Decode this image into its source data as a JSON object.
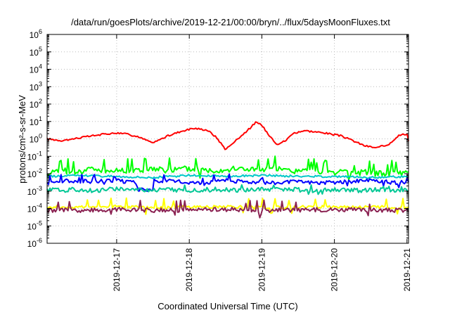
{
  "chart_data": {
    "type": "line",
    "title": "/data/run/goesPlots/archive/2019-12-21/00:00/bryn/../flux/5daysMoonFluxes.txt",
    "xlabel": "Coordinated Universal Time (UTC)",
    "ylabel": "protons/cm²-s-sr-MeV",
    "y_scale": "log",
    "ylim_exponents": [
      -6,
      6
    ],
    "xlim": [
      "2019-12-16T01:00",
      "2019-12-21T00:30"
    ],
    "grid": true,
    "legend": "none",
    "x_ticks": [
      {
        "at": "2019-12-17T00:00",
        "label": "2019-12-17"
      },
      {
        "at": "2019-12-18T00:00",
        "label": "2019-12-18"
      },
      {
        "at": "2019-12-19T00:00",
        "label": "2019-12-19"
      },
      {
        "at": "2019-12-20T00:00",
        "label": "2019-12-20"
      },
      {
        "at": "2019-12-21T00:00",
        "label": "2019-12-21"
      }
    ],
    "y_ticks": [
      {
        "exp": -6,
        "label": "10",
        "sup": "-6"
      },
      {
        "exp": -5,
        "label": "10",
        "sup": "-5"
      },
      {
        "exp": -4,
        "label": "10",
        "sup": "-4"
      },
      {
        "exp": -3,
        "label": "10",
        "sup": "-3"
      },
      {
        "exp": -2,
        "label": "10",
        "sup": "-2"
      },
      {
        "exp": -1,
        "label": "10",
        "sup": "-1"
      },
      {
        "exp": 0,
        "label": "10",
        "sup": "0"
      },
      {
        "exp": 1,
        "label": "10",
        "sup": "1"
      },
      {
        "exp": 2,
        "label": "10",
        "sup": "2"
      },
      {
        "exp": 3,
        "label": "10",
        "sup": "3"
      },
      {
        "exp": 4,
        "label": "10",
        "sup": "4"
      },
      {
        "exp": 5,
        "label": "10",
        "sup": "5"
      },
      {
        "exp": 6,
        "label": "10",
        "sup": "6"
      }
    ],
    "series": [
      {
        "color": "#ff0000",
        "points": [
          [
            "2019-12-16T01:00",
            1.0
          ],
          [
            "2019-12-16T06:00",
            0.8
          ],
          [
            "2019-12-16T11:00",
            1.1
          ],
          [
            "2019-12-16T16:00",
            1.5
          ],
          [
            "2019-12-16T21:00",
            2.0
          ],
          [
            "2019-12-17T02:00",
            2.2
          ],
          [
            "2019-12-17T07:00",
            1.3
          ],
          [
            "2019-12-17T12:00",
            0.6
          ],
          [
            "2019-12-17T17:00",
            1.5
          ],
          [
            "2019-12-17T22:00",
            3.0
          ],
          [
            "2019-12-18T02:00",
            4.0
          ],
          [
            "2019-12-18T06:00",
            3.2
          ],
          [
            "2019-12-18T09:00",
            1.2
          ],
          [
            "2019-12-18T12:00",
            0.25
          ],
          [
            "2019-12-18T16:00",
            1.0
          ],
          [
            "2019-12-18T20:00",
            4.0
          ],
          [
            "2019-12-18T22:00",
            9.0
          ],
          [
            "2019-12-19T00:00",
            6.0
          ],
          [
            "2019-12-19T02:00",
            2.0
          ],
          [
            "2019-12-19T05:00",
            0.5
          ],
          [
            "2019-12-19T08:00",
            0.8
          ],
          [
            "2019-12-19T10:00",
            2.0
          ],
          [
            "2019-12-19T14:00",
            3.0
          ],
          [
            "2019-12-19T18:00",
            2.5
          ],
          [
            "2019-12-19T22:00",
            2.0
          ],
          [
            "2019-12-20T02:00",
            1.5
          ],
          [
            "2019-12-20T06:00",
            0.8
          ],
          [
            "2019-12-20T10:00",
            0.4
          ],
          [
            "2019-12-20T14:00",
            0.3
          ],
          [
            "2019-12-20T18:00",
            0.5
          ],
          [
            "2019-12-20T21:00",
            1.5
          ],
          [
            "2019-12-21T00:00",
            2.0
          ],
          [
            "2019-12-21T00:30",
            0.7
          ]
        ]
      },
      {
        "color": "#00ff00",
        "points": [
          [
            "2019-12-16T01:00",
            0.013
          ],
          [
            "2019-12-16T06:00",
            0.015
          ],
          [
            "2019-12-16T11:00",
            0.012
          ],
          [
            "2019-12-16T16:00",
            0.02
          ],
          [
            "2019-12-16T21:00",
            0.014
          ],
          [
            "2019-12-17T02:00",
            0.016
          ],
          [
            "2019-12-17T07:00",
            0.015
          ],
          [
            "2019-12-17T12:00",
            0.018
          ],
          [
            "2019-12-17T17:00",
            0.015
          ],
          [
            "2019-12-17T22:00",
            0.02
          ],
          [
            "2019-12-18T03:00",
            0.017
          ],
          [
            "2019-12-18T08:00",
            0.016
          ],
          [
            "2019-12-18T13:00",
            0.018
          ],
          [
            "2019-12-18T18:00",
            0.02
          ],
          [
            "2019-12-18T23:00",
            0.016
          ],
          [
            "2019-12-19T04:00",
            0.02
          ],
          [
            "2019-12-19T09:00",
            0.014
          ],
          [
            "2019-12-19T14:00",
            0.015
          ],
          [
            "2019-12-19T19:00",
            0.012
          ],
          [
            "2019-12-20T00:00",
            0.013
          ],
          [
            "2019-12-20T05:00",
            0.01
          ],
          [
            "2019-12-20T10:00",
            0.012
          ],
          [
            "2019-12-20T15:00",
            0.01
          ],
          [
            "2019-12-20T20:00",
            0.011
          ],
          [
            "2019-12-21T00:30",
            0.01
          ]
        ]
      },
      {
        "color": "#00c8c8",
        "points": [
          [
            "2019-12-16T01:00",
            0.007
          ],
          [
            "2019-12-16T12:00",
            0.008
          ],
          [
            "2019-12-17T00:00",
            0.007
          ],
          [
            "2019-12-17T12:00",
            0.006
          ],
          [
            "2019-12-18T00:00",
            0.008
          ],
          [
            "2019-12-18T12:00",
            0.007
          ],
          [
            "2019-12-19T00:00",
            0.008
          ],
          [
            "2019-12-19T12:00",
            0.007
          ],
          [
            "2019-12-20T00:00",
            0.007
          ],
          [
            "2019-12-20T12:00",
            0.006
          ],
          [
            "2019-12-21T00:30",
            0.007
          ]
        ]
      },
      {
        "color": "#0000ff",
        "points": [
          [
            "2019-12-16T01:00",
            0.003
          ],
          [
            "2019-12-16T08:00",
            0.004
          ],
          [
            "2019-12-16T16:00",
            0.0035
          ],
          [
            "2019-12-17T00:00",
            0.004
          ],
          [
            "2019-12-17T06:00",
            0.003
          ],
          [
            "2019-12-17T07:00",
            0.0012
          ],
          [
            "2019-12-17T12:00",
            0.0012
          ],
          [
            "2019-12-17T13:00",
            0.004
          ],
          [
            "2019-12-17T20:00",
            0.0035
          ],
          [
            "2019-12-18T04:00",
            0.003
          ],
          [
            "2019-12-18T12:00",
            0.004
          ],
          [
            "2019-12-18T20:00",
            0.0035
          ],
          [
            "2019-12-19T04:00",
            0.003
          ],
          [
            "2019-12-19T12:00",
            0.0035
          ],
          [
            "2019-12-19T20:00",
            0.003
          ],
          [
            "2019-12-20T04:00",
            0.0035
          ],
          [
            "2019-12-20T12:00",
            0.004
          ],
          [
            "2019-12-20T20:00",
            0.003
          ],
          [
            "2019-12-21T00:30",
            0.0035
          ]
        ]
      },
      {
        "color": "#00c896",
        "points": [
          [
            "2019-12-16T01:00",
            0.0011
          ],
          [
            "2019-12-16T08:00",
            0.0012
          ],
          [
            "2019-12-16T16:00",
            0.0011
          ],
          [
            "2019-12-17T00:00",
            0.0013
          ],
          [
            "2019-12-17T08:00",
            0.0011
          ],
          [
            "2019-12-17T16:00",
            0.0012
          ],
          [
            "2019-12-18T00:00",
            0.0011
          ],
          [
            "2019-12-18T08:00",
            0.0012
          ],
          [
            "2019-12-18T16:00",
            0.0011
          ],
          [
            "2019-12-19T00:00",
            0.0012
          ],
          [
            "2019-12-19T08:00",
            0.0013
          ],
          [
            "2019-12-19T16:00",
            0.0011
          ],
          [
            "2019-12-20T00:00",
            0.0012
          ],
          [
            "2019-12-20T08:00",
            0.0011
          ],
          [
            "2019-12-20T16:00",
            0.0012
          ],
          [
            "2019-12-21T00:30",
            0.0011
          ]
        ]
      },
      {
        "color": "#ffff00",
        "points": [
          [
            "2019-12-16T01:00",
            0.00012
          ],
          [
            "2019-12-16T12:00",
            0.00012
          ],
          [
            "2019-12-17T00:00",
            0.00013
          ],
          [
            "2019-12-17T12:00",
            0.00011
          ],
          [
            "2019-12-18T00:00",
            0.00012
          ],
          [
            "2019-12-18T12:00",
            0.00013
          ],
          [
            "2019-12-19T00:00",
            0.00011
          ],
          [
            "2019-12-19T12:00",
            0.00012
          ],
          [
            "2019-12-20T00:00",
            0.00013
          ],
          [
            "2019-12-20T12:00",
            0.00012
          ],
          [
            "2019-12-21T00:30",
            0.00012
          ]
        ]
      },
      {
        "color": "#8b2252",
        "points": [
          [
            "2019-12-16T01:00",
            8e-05
          ],
          [
            "2019-12-16T12:00",
            8e-05
          ],
          [
            "2019-12-17T00:00",
            9e-05
          ],
          [
            "2019-12-17T12:00",
            8e-05
          ],
          [
            "2019-12-18T00:00",
            8e-05
          ],
          [
            "2019-12-18T12:00",
            9e-05
          ],
          [
            "2019-12-19T00:00",
            8e-05
          ],
          [
            "2019-12-19T12:00",
            8e-05
          ],
          [
            "2019-12-20T00:00",
            9e-05
          ],
          [
            "2019-12-20T12:00",
            8e-05
          ],
          [
            "2019-12-21T00:30",
            8e-05
          ]
        ]
      }
    ]
  }
}
